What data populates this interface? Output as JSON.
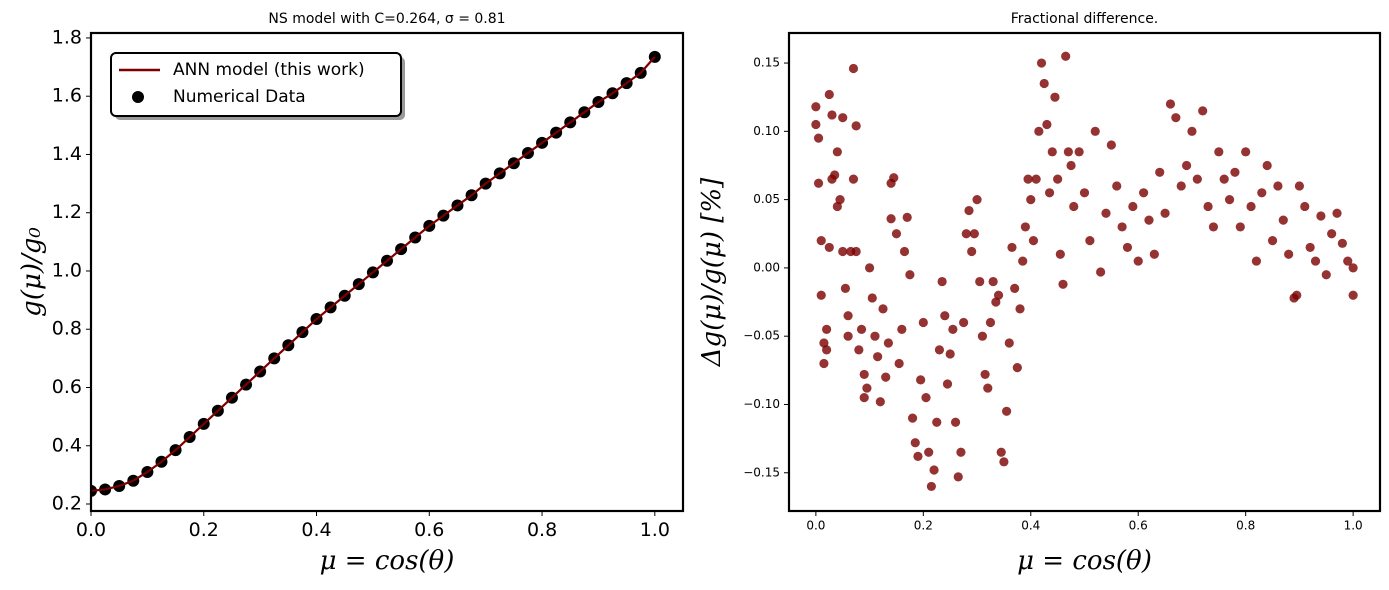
{
  "chart_data": [
    {
      "type": "line",
      "title": "NS model with C=0.264, σ = 0.81",
      "xlabel": "μ = cos(θ)",
      "ylabel": "g(μ)/g₀",
      "x": [
        0,
        0.025,
        0.05,
        0.075,
        0.1,
        0.125,
        0.15,
        0.175,
        0.2,
        0.225,
        0.25,
        0.275,
        0.3,
        0.325,
        0.35,
        0.375,
        0.4,
        0.425,
        0.45,
        0.475,
        0.5,
        0.525,
        0.55,
        0.575,
        0.6,
        0.625,
        0.65,
        0.675,
        0.7,
        0.725,
        0.75,
        0.775,
        0.8,
        0.825,
        0.85,
        0.875,
        0.9,
        0.925,
        0.95,
        0.975,
        1.0
      ],
      "series": [
        {
          "name": "ANN model (this work)",
          "color": "#7b0000",
          "kind": "line",
          "values": [
            0.245,
            0.25,
            0.262,
            0.28,
            0.31,
            0.345,
            0.385,
            0.43,
            0.475,
            0.52,
            0.565,
            0.61,
            0.655,
            0.7,
            0.745,
            0.79,
            0.835,
            0.875,
            0.915,
            0.955,
            0.995,
            1.035,
            1.075,
            1.115,
            1.155,
            1.19,
            1.225,
            1.26,
            1.3,
            1.335,
            1.37,
            1.405,
            1.44,
            1.475,
            1.51,
            1.545,
            1.58,
            1.61,
            1.645,
            1.68,
            1.735
          ]
        },
        {
          "name": "Numerical Data",
          "color": "#000000",
          "kind": "scatter",
          "values": [
            0.245,
            0.25,
            0.262,
            0.28,
            0.31,
            0.345,
            0.385,
            0.43,
            0.475,
            0.52,
            0.565,
            0.61,
            0.655,
            0.7,
            0.745,
            0.79,
            0.835,
            0.875,
            0.915,
            0.955,
            0.995,
            1.035,
            1.075,
            1.115,
            1.155,
            1.19,
            1.225,
            1.26,
            1.3,
            1.335,
            1.37,
            1.405,
            1.44,
            1.475,
            1.51,
            1.545,
            1.58,
            1.61,
            1.645,
            1.68,
            1.735
          ]
        }
      ],
      "xlim": [
        0,
        1.05
      ],
      "ylim": [
        0.176,
        1.817
      ],
      "xticks": [
        {
          "value": 0,
          "label": "0.0"
        },
        0.2,
        0.4,
        0.6,
        0.8,
        {
          "value": 1,
          "label": "1.0"
        }
      ],
      "yticks": [
        0.2,
        0.4,
        0.6,
        0.8,
        {
          "value": 1,
          "label": "1.0"
        },
        1.2,
        1.4,
        1.6,
        1.8
      ],
      "legend": "upper left"
    },
    {
      "type": "scatter",
      "title": "Fractional difference.",
      "xlabel": "μ = cos(θ)",
      "ylabel": "Δg(μ)/g(μ)  [%]",
      "color": "#7b0000",
      "x": [
        0.0,
        0.0,
        0.005,
        0.005,
        0.01,
        0.01,
        0.015,
        0.015,
        0.02,
        0.02,
        0.025,
        0.025,
        0.03,
        0.03,
        0.035,
        0.04,
        0.04,
        0.045,
        0.05,
        0.05,
        0.055,
        0.06,
        0.06,
        0.065,
        0.07,
        0.07,
        0.075,
        0.075,
        0.08,
        0.085,
        0.09,
        0.09,
        0.095,
        0.1,
        0.105,
        0.11,
        0.115,
        0.12,
        0.125,
        0.13,
        0.135,
        0.14,
        0.14,
        0.145,
        0.15,
        0.155,
        0.16,
        0.165,
        0.17,
        0.175,
        0.18,
        0.185,
        0.19,
        0.195,
        0.2,
        0.205,
        0.21,
        0.215,
        0.22,
        0.225,
        0.23,
        0.235,
        0.24,
        0.245,
        0.25,
        0.255,
        0.26,
        0.265,
        0.27,
        0.275,
        0.28,
        0.285,
        0.29,
        0.295,
        0.3,
        0.305,
        0.31,
        0.315,
        0.32,
        0.325,
        0.33,
        0.335,
        0.34,
        0.345,
        0.35,
        0.355,
        0.36,
        0.365,
        0.37,
        0.375,
        0.38,
        0.385,
        0.39,
        0.395,
        0.4,
        0.405,
        0.41,
        0.415,
        0.42,
        0.425,
        0.43,
        0.435,
        0.44,
        0.445,
        0.45,
        0.455,
        0.46,
        0.465,
        0.47,
        0.475,
        0.48,
        0.49,
        0.5,
        0.51,
        0.52,
        0.53,
        0.54,
        0.55,
        0.56,
        0.57,
        0.58,
        0.59,
        0.6,
        0.61,
        0.62,
        0.63,
        0.64,
        0.65,
        0.66,
        0.67,
        0.68,
        0.69,
        0.7,
        0.71,
        0.72,
        0.73,
        0.74,
        0.75,
        0.76,
        0.77,
        0.78,
        0.79,
        0.8,
        0.81,
        0.82,
        0.83,
        0.84,
        0.85,
        0.86,
        0.87,
        0.88,
        0.89,
        0.895,
        0.9,
        0.91,
        0.92,
        0.93,
        0.94,
        0.95,
        0.96,
        0.97,
        0.98,
        0.99,
        1.0,
        1.0
      ],
      "values": [
        0.105,
        0.118,
        0.095,
        0.062,
        0.02,
        -0.02,
        -0.055,
        -0.07,
        -0.06,
        -0.045,
        0.127,
        0.015,
        0.112,
        0.065,
        0.068,
        0.085,
        0.045,
        0.05,
        0.11,
        0.012,
        -0.015,
        -0.035,
        -0.05,
        0.012,
        0.146,
        0.065,
        0.104,
        0.012,
        -0.06,
        -0.045,
        -0.095,
        -0.078,
        -0.088,
        0.0,
        -0.022,
        -0.05,
        -0.065,
        -0.098,
        -0.03,
        -0.08,
        -0.055,
        0.036,
        0.062,
        0.066,
        0.025,
        -0.07,
        -0.045,
        0.012,
        0.037,
        -0.005,
        -0.11,
        -0.128,
        -0.138,
        -0.082,
        -0.04,
        -0.095,
        -0.135,
        -0.16,
        -0.148,
        -0.113,
        -0.06,
        -0.01,
        -0.035,
        -0.085,
        -0.063,
        -0.045,
        -0.113,
        -0.153,
        -0.135,
        -0.04,
        0.025,
        0.042,
        0.012,
        0.025,
        0.05,
        -0.01,
        -0.05,
        -0.078,
        -0.088,
        -0.04,
        -0.01,
        -0.025,
        -0.02,
        -0.135,
        -0.142,
        -0.105,
        -0.055,
        0.015,
        -0.015,
        -0.073,
        -0.03,
        0.005,
        0.03,
        0.065,
        0.05,
        0.02,
        0.065,
        0.1,
        0.15,
        0.135,
        0.105,
        0.055,
        0.085,
        0.125,
        0.065,
        0.01,
        -0.012,
        0.155,
        0.085,
        0.075,
        0.045,
        0.085,
        0.055,
        0.02,
        0.1,
        -0.003,
        0.04,
        0.09,
        0.06,
        0.03,
        0.015,
        0.045,
        0.005,
        0.055,
        0.035,
        0.01,
        0.07,
        0.04,
        0.12,
        0.11,
        0.06,
        0.075,
        0.1,
        0.065,
        0.115,
        0.045,
        0.03,
        0.085,
        0.065,
        0.05,
        0.07,
        0.03,
        0.085,
        0.045,
        0.005,
        0.055,
        0.075,
        0.02,
        0.06,
        0.035,
        0.01,
        -0.022,
        -0.02,
        0.06,
        0.045,
        0.015,
        0.005,
        0.038,
        -0.005,
        0.025,
        0.04,
        0.018,
        0.005,
        -0.02,
        0.0
      ],
      "xlim": [
        -0.05,
        1.05
      ],
      "ylim": [
        -0.178,
        0.172
      ],
      "xticks": [
        {
          "value": 0,
          "label": "0.0"
        },
        0.2,
        0.4,
        0.6,
        0.8,
        {
          "value": 1,
          "label": "1.0"
        }
      ],
      "yticks": [
        {
          "value": -0.15,
          "label": "−0.15"
        },
        {
          "value": -0.1,
          "label": "−0.10"
        },
        {
          "value": -0.05,
          "label": "−0.05"
        },
        {
          "value": 0,
          "label": "0.00"
        },
        0.05,
        {
          "value": 0.1,
          "label": "0.10"
        },
        0.15
      ]
    }
  ]
}
